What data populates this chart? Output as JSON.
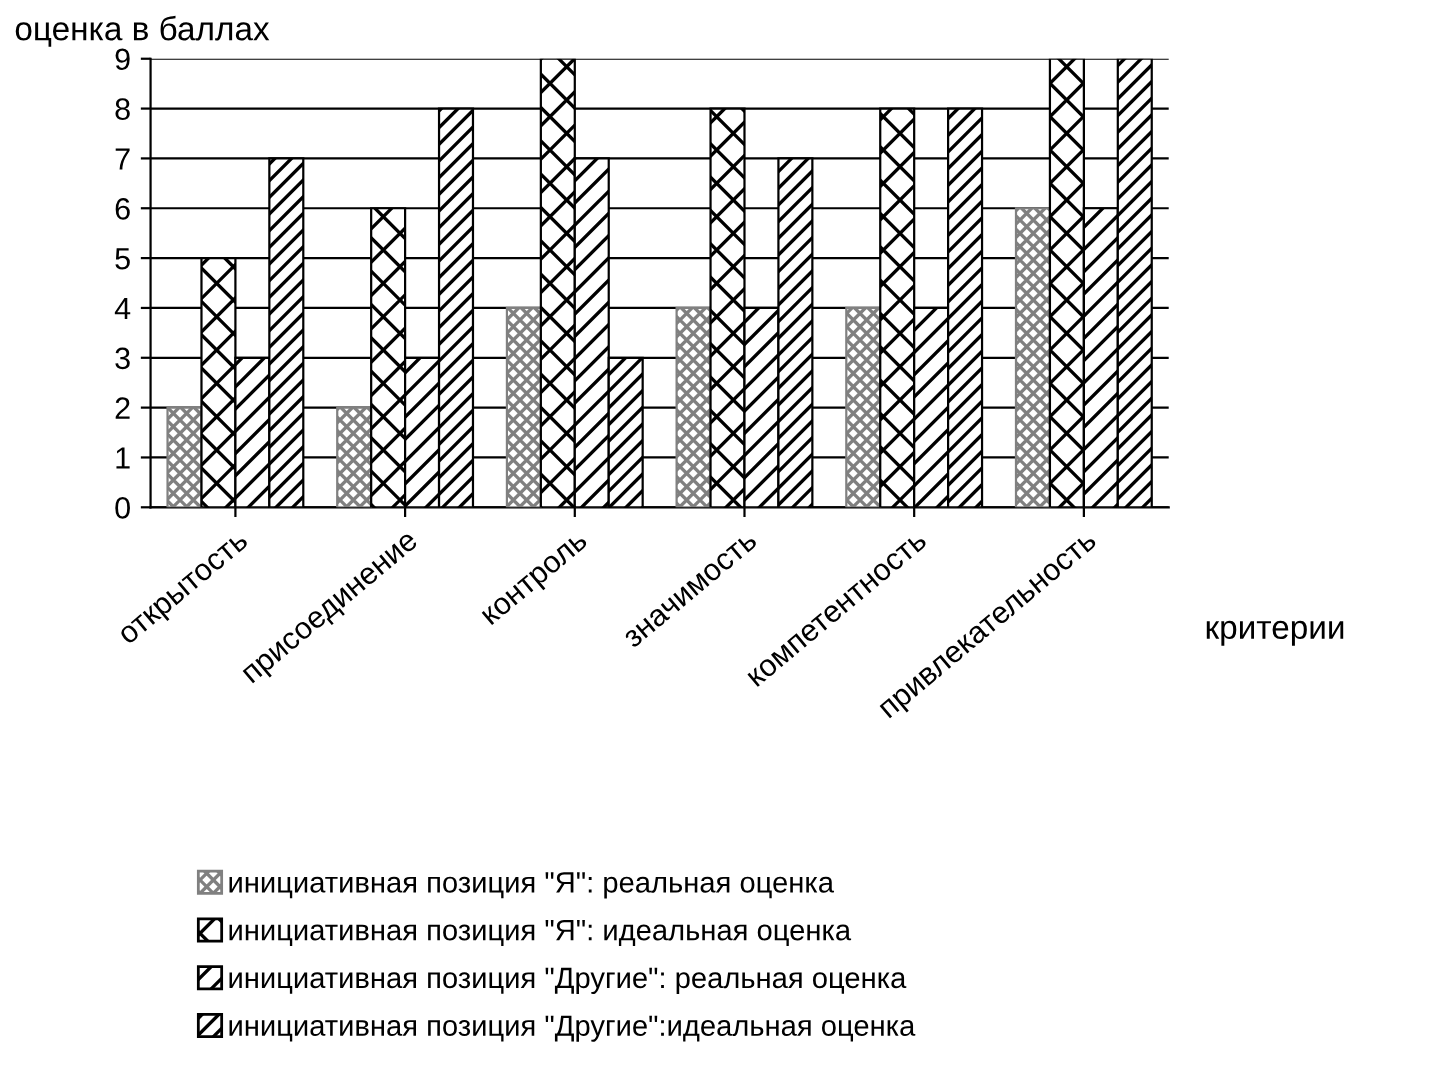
{
  "chart_data": {
    "type": "bar",
    "ylabel": "оценка в баллах",
    "xlabel": "критерии",
    "categories": [
      "открытость",
      "присоединение",
      "контроль",
      "значимость",
      "компетентность",
      "привлекательность"
    ],
    "series": [
      {
        "name": "инициативная позиция \"Я\": реальная оценка",
        "color": "#808080",
        "values": [
          2,
          2,
          4,
          4,
          4,
          6
        ]
      },
      {
        "name": "инициативная позиция \"Я\": идеальная оценка",
        "color": "#000000",
        "values": [
          5,
          6,
          9,
          8,
          8,
          9
        ]
      },
      {
        "name": "инициативная позиция \"Другие\": реальная оценка",
        "color": "#000000",
        "values": [
          3,
          3,
          7,
          4,
          4,
          6
        ]
      },
      {
        "name": "инициативная позиция \"Другие\":идеальная оценка",
        "color": "#000000",
        "values": [
          7,
          8,
          3,
          7,
          8,
          9
        ]
      }
    ],
    "ylim": [
      0,
      9
    ],
    "yticks": [
      0,
      1,
      2,
      3,
      4,
      5,
      6,
      7,
      8,
      9
    ],
    "grid": "y",
    "legend": "bottom"
  }
}
